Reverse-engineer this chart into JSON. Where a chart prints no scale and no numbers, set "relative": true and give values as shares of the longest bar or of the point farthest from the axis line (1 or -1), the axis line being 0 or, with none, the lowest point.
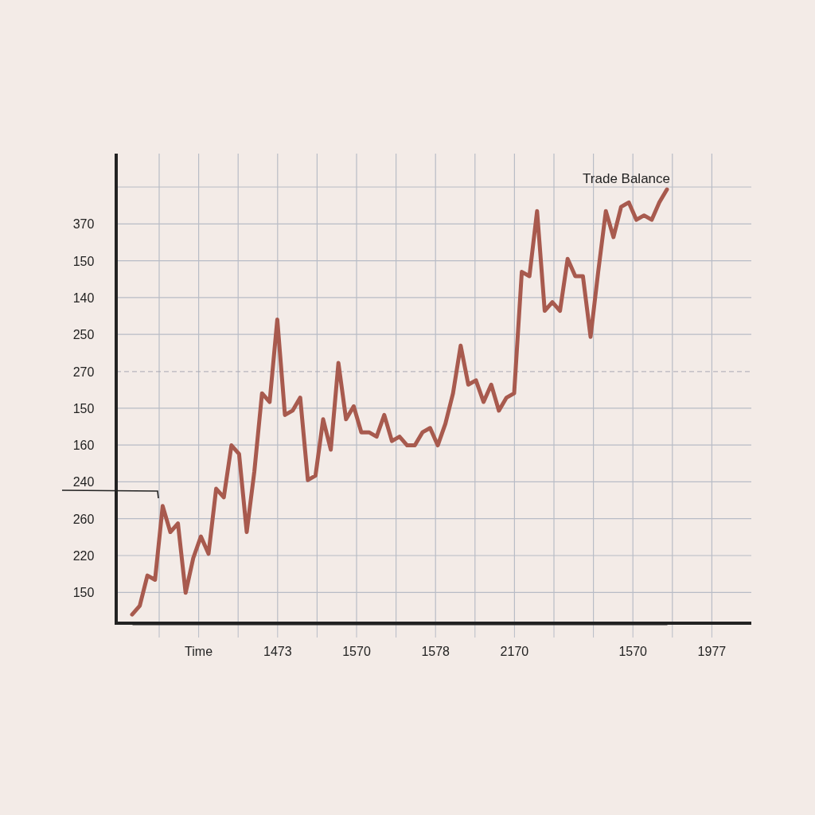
{
  "chart_data": {
    "type": "line",
    "relative": true,
    "categories": [
      null,
      null,
      null,
      null,
      null,
      null,
      null,
      null,
      null,
      null,
      null,
      null,
      null,
      null,
      null,
      null,
      null,
      null,
      null,
      null,
      null,
      null,
      null,
      null,
      null,
      null,
      null,
      null,
      null,
      null,
      null,
      null,
      null,
      null,
      null,
      null,
      null,
      null,
      null,
      null,
      null,
      null,
      null,
      null,
      null,
      null,
      null,
      null,
      null,
      null,
      null,
      null,
      null,
      null,
      null,
      null,
      null,
      null,
      null,
      null,
      null,
      null,
      null,
      null,
      null,
      null,
      null,
      null,
      null,
      null,
      null
    ],
    "series": [
      {
        "name": "Trade Balance",
        "color": "#a85a4e",
        "values": [
          0.02,
          0.04,
          0.11,
          0.1,
          0.27,
          0.21,
          0.23,
          0.07,
          0.15,
          0.2,
          0.16,
          0.31,
          0.29,
          0.41,
          0.39,
          0.21,
          0.35,
          0.53,
          0.51,
          0.7,
          0.48,
          0.49,
          0.52,
          0.33,
          0.34,
          0.47,
          0.4,
          0.6,
          0.47,
          0.5,
          0.44,
          0.44,
          0.43,
          0.48,
          0.42,
          0.43,
          0.41,
          0.41,
          0.44,
          0.45,
          0.41,
          0.46,
          0.53,
          0.64,
          0.55,
          0.56,
          0.51,
          0.55,
          0.49,
          0.52,
          0.53,
          0.81,
          0.8,
          0.95,
          0.72,
          0.74,
          0.72,
          0.84,
          0.8,
          0.8,
          0.66,
          0.81,
          0.95,
          0.89,
          0.96,
          0.97,
          0.93,
          0.94,
          0.93,
          0.97,
          1
        ]
      }
    ],
    "annotations": [
      "370",
      "150",
      "140",
      "250",
      "270",
      "150",
      "160",
      "240",
      "260",
      "220",
      "150",
      "Time",
      "1473",
      "1570",
      "1578",
      "2170",
      "1570",
      "1977"
    ],
    "grid": true,
    "line_style": "solid",
    "ref_lines": [
      {
        "axis": "y",
        "value": 0.58,
        "color": "#a9a9b2",
        "line_style": "dashed"
      }
    ]
  }
}
